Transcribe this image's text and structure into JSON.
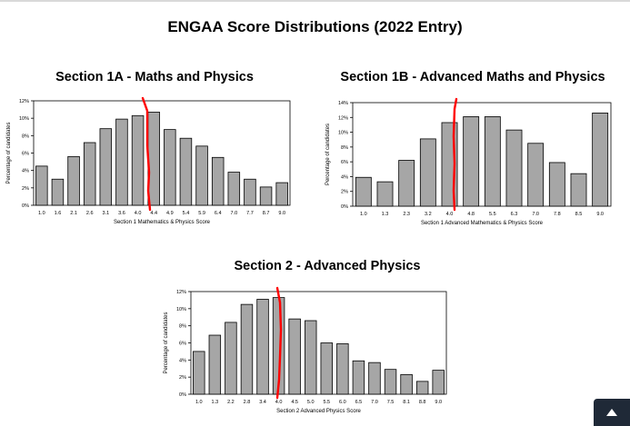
{
  "page": {
    "title": "ENGAA Score Distributions (2022 Entry)"
  },
  "chart_data": [
    {
      "id": "c1",
      "type": "bar",
      "title": "Section 1A - Maths and Physics",
      "xlabel": "Section 1 Mathematics & Physics Score",
      "ylabel": "Percentage of candidates",
      "categories": [
        "1.0",
        "1.6",
        "2.1",
        "2.6",
        "3.1",
        "3.6",
        "4.0",
        "4.4",
        "4.9",
        "5.4",
        "5.9",
        "6.4",
        "7.0",
        "7.7",
        "8.7",
        "9.0"
      ],
      "values": [
        4.5,
        3.0,
        5.6,
        7.2,
        8.8,
        9.9,
        10.3,
        10.7,
        8.7,
        7.7,
        6.8,
        5.5,
        3.8,
        3.0,
        2.1,
        2.6
      ],
      "ylim": [
        0,
        12
      ],
      "yticks": [
        "0%",
        "2%",
        "4%",
        "6%",
        "8%",
        "10%",
        "12%"
      ],
      "marker_line": {
        "color": "#ff0000",
        "x_between": [
          "4.0",
          "4.4"
        ]
      },
      "bar_color": "#a6a6a6"
    },
    {
      "id": "c2",
      "type": "bar",
      "title": "Section 1B - Advanced Maths and Physics",
      "xlabel": "Section 1 Advanced Mathematics & Physics Score",
      "ylabel": "Percentage of candidates",
      "categories": [
        "1.0",
        "1.3",
        "2.3",
        "3.2",
        "4.0",
        "4.8",
        "5.5",
        "6.3",
        "7.0",
        "7.8",
        "8.5",
        "9.0"
      ],
      "values": [
        3.9,
        3.3,
        6.2,
        9.1,
        11.3,
        12.1,
        12.1,
        10.3,
        8.5,
        5.9,
        4.4,
        12.6
      ],
      "ylim": [
        0,
        14
      ],
      "yticks": [
        "0%",
        "2%",
        "4%",
        "6%",
        "8%",
        "10%",
        "12%",
        "14%"
      ],
      "marker_line": {
        "color": "#ff0000",
        "x_between": [
          "4.0",
          "4.8"
        ]
      },
      "bar_color": "#a6a6a6"
    },
    {
      "id": "c3",
      "type": "bar",
      "title": "Section 2 - Advanced Physics",
      "xlabel": "Section 2 Advanced Physics Score",
      "ylabel": "Percentage of candidates",
      "categories": [
        "1.0",
        "1.3",
        "2.2",
        "2.8",
        "3.4",
        "4.0",
        "4.5",
        "5.0",
        "5.5",
        "6.0",
        "6.5",
        "7.0",
        "7.5",
        "8.1",
        "8.8",
        "9.0"
      ],
      "values": [
        5.0,
        6.9,
        8.4,
        10.5,
        11.1,
        11.3,
        8.8,
        8.6,
        6.0,
        5.9,
        3.9,
        3.7,
        2.9,
        2.3,
        1.5,
        2.8
      ],
      "ylim": [
        0,
        12
      ],
      "yticks": [
        "0%",
        "2%",
        "4%",
        "6%",
        "8%",
        "10%",
        "12%"
      ],
      "marker_line": {
        "color": "#ff0000",
        "x_between": [
          "3.4",
          "4.0"
        ]
      },
      "bar_color": "#a6a6a6"
    }
  ],
  "scroll_top": {
    "icon": "chevron-up-icon",
    "bg_color": "#1f2937"
  }
}
